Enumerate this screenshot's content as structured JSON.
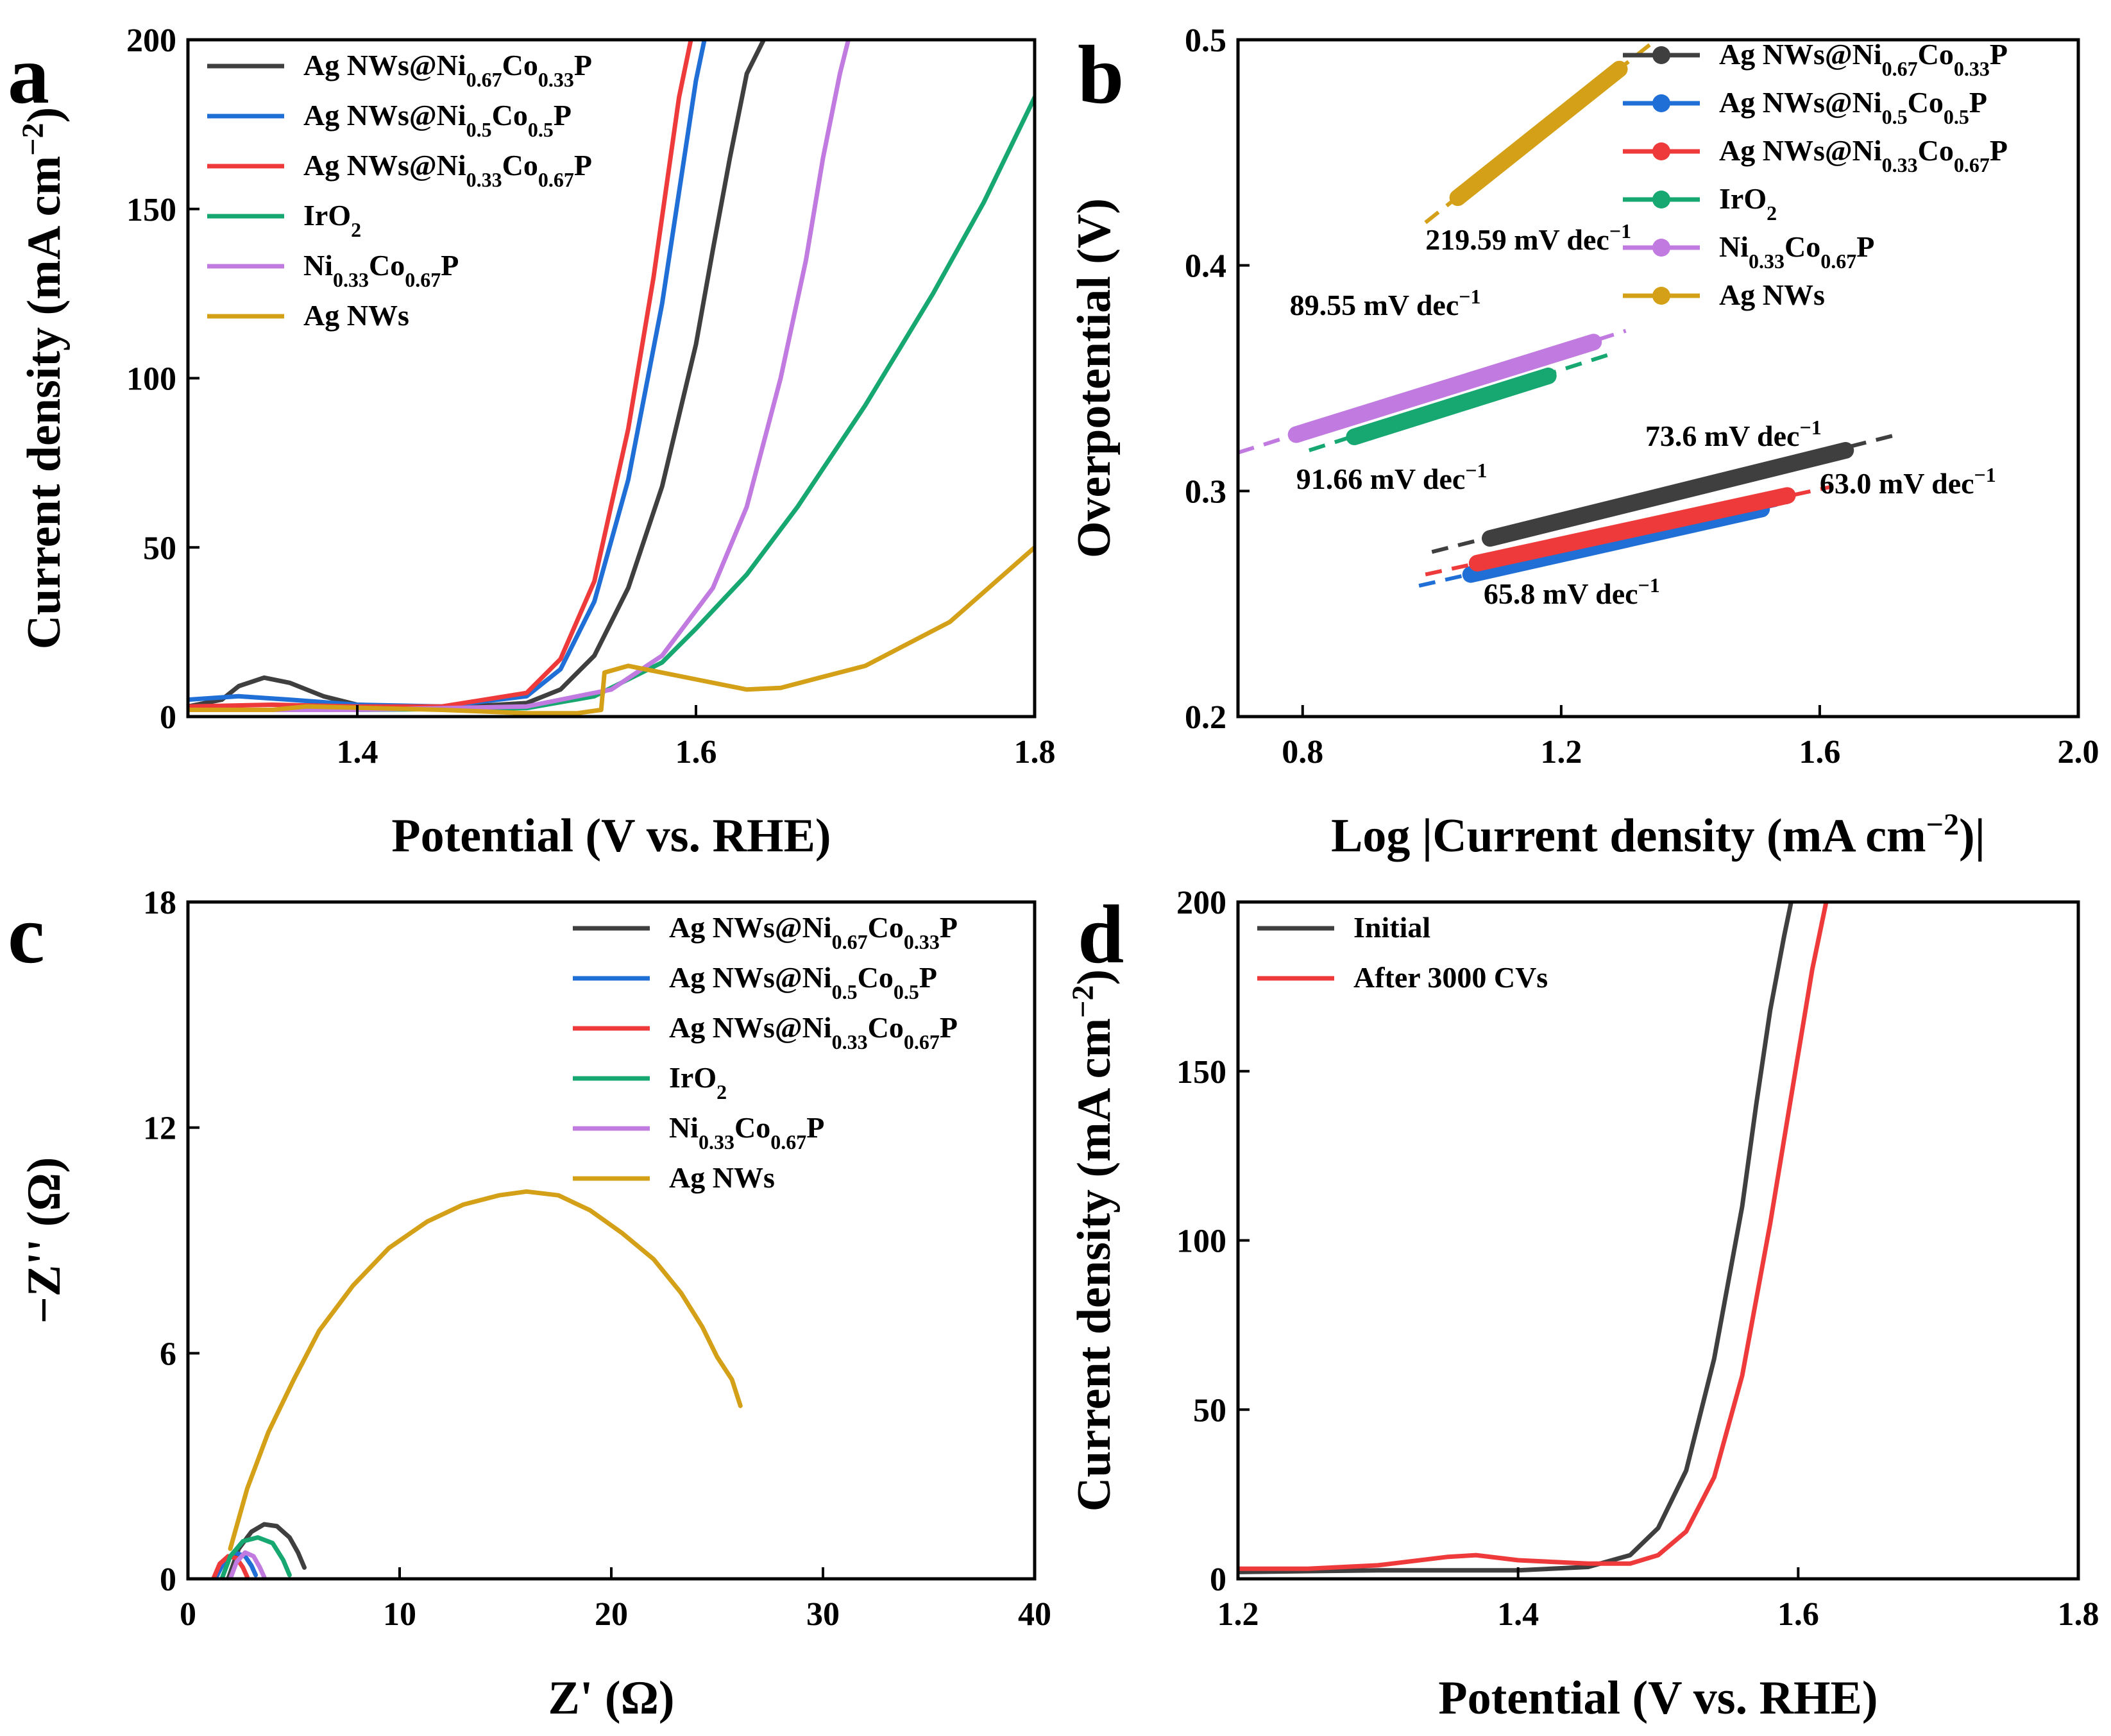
{
  "colors": {
    "black": "#3f3f3f",
    "blue": "#1f6fd6",
    "red": "#ee3a3a",
    "green": "#16a870",
    "purple": "#c07ae0",
    "gold": "#d4a017",
    "initial": "#3f3f3f",
    "after": "#ee3a3a"
  },
  "chart_data": [
    {
      "panel": "a",
      "type": "line",
      "xlabel": "Potential (V vs. RHE)",
      "ylabel": "Current density (mA cm",
      "ylabel_sup": "−2",
      "ylabel_tail": ")",
      "xlim": [
        1.3,
        1.8
      ],
      "ylim": [
        0,
        200
      ],
      "xticks": [
        1.4,
        1.6,
        1.8
      ],
      "xtick_labels": [
        "1.4",
        "1.6",
        "1.8"
      ],
      "yticks": [
        0,
        50,
        100,
        150,
        200
      ],
      "ytick_labels": [
        "0",
        "50",
        "100",
        "150",
        "200"
      ],
      "legend_position": "top-left",
      "series": [
        {
          "name": "Ag NWs@Ni0.67Co0.33P",
          "label_parts": [
            "Ag NWs@Ni",
            "0.67",
            "Co",
            "0.33",
            "P"
          ],
          "color_key": "black",
          "x": [
            1.3,
            1.32,
            1.33,
            1.345,
            1.36,
            1.38,
            1.4,
            1.45,
            1.5,
            1.52,
            1.54,
            1.56,
            1.58,
            1.6,
            1.61,
            1.62,
            1.63,
            1.64
          ],
          "y": [
            3,
            5,
            9,
            11.5,
            10,
            6,
            3.5,
            2.5,
            4,
            8,
            18,
            38,
            68,
            110,
            138,
            165,
            190,
            200
          ]
        },
        {
          "name": "Ag NWs@Ni0.5Co0.5P",
          "label_parts": [
            "Ag NWs@Ni",
            "0.5",
            "Co",
            "0.5",
            "P"
          ],
          "color_key": "blue",
          "x": [
            1.3,
            1.33,
            1.36,
            1.4,
            1.45,
            1.5,
            1.52,
            1.54,
            1.56,
            1.58,
            1.59,
            1.6,
            1.605
          ],
          "y": [
            5,
            6,
            5,
            3.5,
            3,
            6,
            14,
            34,
            70,
            122,
            155,
            188,
            200
          ]
        },
        {
          "name": "Ag NWs@Ni0.33Co0.67P",
          "label_parts": [
            "Ag NWs@Ni",
            "0.33",
            "Co",
            "0.67",
            "P"
          ],
          "color_key": "red",
          "x": [
            1.3,
            1.35,
            1.4,
            1.45,
            1.5,
            1.52,
            1.54,
            1.56,
            1.575,
            1.59,
            1.597
          ],
          "y": [
            3,
            3.5,
            3,
            3,
            7,
            17,
            40,
            85,
            130,
            183,
            200
          ]
        },
        {
          "name": "IrO2",
          "label_parts": [
            "IrO",
            "2",
            "",
            "",
            ""
          ],
          "color_key": "green",
          "x": [
            1.3,
            1.4,
            1.5,
            1.54,
            1.58,
            1.6,
            1.63,
            1.66,
            1.7,
            1.74,
            1.77,
            1.8
          ],
          "y": [
            2,
            2,
            2.5,
            6,
            16,
            26,
            42,
            62,
            92,
            125,
            152,
            183
          ]
        },
        {
          "name": "Ni0.33Co0.67P",
          "label_parts": [
            "Ni",
            "0.33",
            "Co",
            "0.67",
            "P"
          ],
          "color_key": "purple",
          "x": [
            1.3,
            1.4,
            1.5,
            1.55,
            1.58,
            1.61,
            1.63,
            1.65,
            1.665,
            1.675,
            1.685,
            1.69
          ],
          "y": [
            2,
            2,
            3,
            8,
            18,
            38,
            62,
            100,
            135,
            165,
            190,
            200
          ]
        },
        {
          "name": "Ag NWs",
          "label_parts": [
            "Ag NWs",
            "",
            "",
            "",
            ""
          ],
          "color_key": "gold",
          "x": [
            1.3,
            1.35,
            1.37,
            1.45,
            1.5,
            1.53,
            1.544,
            1.546,
            1.56,
            1.6,
            1.63,
            1.65,
            1.7,
            1.75,
            1.8
          ],
          "y": [
            2,
            2,
            3,
            2,
            1,
            1,
            2,
            13,
            15,
            11,
            8,
            8.5,
            15,
            28,
            50
          ]
        }
      ]
    },
    {
      "panel": "b",
      "type": "scatter",
      "xlabel": "Log |Current density (mA cm",
      "xlabel_sup": "−2",
      "xlabel_tail": ")|",
      "ylabel": "Overpotential (V)",
      "xlim": [
        0.7,
        2.0
      ],
      "ylim": [
        0.2,
        0.5
      ],
      "xticks": [
        0.8,
        1.2,
        1.6,
        2.0
      ],
      "xtick_labels": [
        "0.8",
        "1.2",
        "1.6",
        "2.0"
      ],
      "yticks": [
        0.2,
        0.3,
        0.4,
        0.5
      ],
      "ytick_labels": [
        "0.2",
        "0.3",
        "0.4",
        "0.5"
      ],
      "legend_position": "top-right",
      "series": [
        {
          "name": "Ag NWs@Ni0.67Co0.33P",
          "label_parts": [
            "Ag NWs@Ni",
            "0.67",
            "Co",
            "0.33",
            "P"
          ],
          "color_key": "black",
          "data_x": [
            1.09,
            1.64
          ],
          "data_y": [
            0.279,
            0.318
          ],
          "fit_x": [
            1.0,
            1.72
          ],
          "fit_y": [
            0.273,
            0.325
          ]
        },
        {
          "name": "Ag NWs@Ni0.5Co0.5P",
          "label_parts": [
            "Ag NWs@Ni",
            "0.5",
            "Co",
            "0.5",
            "P"
          ],
          "color_key": "blue",
          "data_x": [
            1.06,
            1.51
          ],
          "data_y": [
            0.263,
            0.292
          ],
          "fit_x": [
            0.98,
            1.55
          ],
          "fit_y": [
            0.258,
            0.295
          ]
        },
        {
          "name": "Ag NWs@Ni0.33Co0.67P",
          "label_parts": [
            "Ag NWs@Ni",
            "0.33",
            "Co",
            "0.67",
            "P"
          ],
          "color_key": "red",
          "data_x": [
            1.07,
            1.55
          ],
          "data_y": [
            0.268,
            0.298
          ],
          "fit_x": [
            0.99,
            1.62
          ],
          "fit_y": [
            0.263,
            0.302
          ]
        },
        {
          "name": "IrO2",
          "label_parts": [
            "IrO",
            "2",
            "",
            "",
            ""
          ],
          "color_key": "green",
          "data_x": [
            0.88,
            1.18
          ],
          "data_y": [
            0.324,
            0.351
          ],
          "fit_x": [
            0.81,
            1.28
          ],
          "fit_y": [
            0.318,
            0.361
          ]
        },
        {
          "name": "Ni0.33Co0.67P",
          "label_parts": [
            "Ni",
            "0.33",
            "Co",
            "0.67",
            "P"
          ],
          "color_key": "purple",
          "data_x": [
            0.79,
            1.25
          ],
          "data_y": [
            0.325,
            0.366
          ],
          "fit_x": [
            0.7,
            1.3
          ],
          "fit_y": [
            0.317,
            0.371
          ]
        },
        {
          "name": "Ag NWs",
          "label_parts": [
            "Ag NWs",
            "",
            "",
            "",
            ""
          ],
          "color_key": "gold",
          "data_x": [
            1.04,
            1.29
          ],
          "data_y": [
            0.43,
            0.487
          ],
          "fit_x": [
            0.99,
            1.36
          ],
          "fit_y": [
            0.419,
            0.503
          ]
        }
      ],
      "annotations": [
        {
          "text": "219.59 mV dec",
          "sup": "−1",
          "x": 0.99,
          "y": 0.407
        },
        {
          "text": "89.55 mV dec",
          "sup": "−1",
          "x": 0.78,
          "y": 0.378
        },
        {
          "text": "91.66 mV dec",
          "sup": "−1",
          "x": 0.79,
          "y": 0.301
        },
        {
          "text": "73.6 mV dec",
          "sup": "−1",
          "x": 1.33,
          "y": 0.32
        },
        {
          "text": "63.0 mV dec",
          "sup": "−1",
          "x": 1.6,
          "y": 0.299
        },
        {
          "text": "65.8 mV dec",
          "sup": "−1",
          "x": 1.08,
          "y": 0.25
        }
      ]
    },
    {
      "panel": "c",
      "type": "line",
      "xlabel": "Z' (Ω)",
      "ylabel": "−Z'' (Ω)",
      "xlim": [
        0,
        40
      ],
      "ylim": [
        0,
        18
      ],
      "xticks": [
        0,
        10,
        20,
        30,
        40
      ],
      "xtick_labels": [
        "0",
        "10",
        "20",
        "30",
        "40"
      ],
      "yticks": [
        0,
        6,
        12,
        18
      ],
      "ytick_labels": [
        "0",
        "6",
        "12",
        "18"
      ],
      "legend_position": "top-right",
      "series": [
        {
          "name": "Ag NWs@Ni0.67Co0.33P",
          "label_parts": [
            "Ag NWs@Ni",
            "0.67",
            "Co",
            "0.33",
            "P"
          ],
          "color_key": "black",
          "x": [
            1.9,
            2.4,
            3.0,
            3.6,
            4.2,
            4.8,
            5.2,
            5.5
          ],
          "y": [
            0,
            0.8,
            1.25,
            1.45,
            1.4,
            1.1,
            0.7,
            0.3
          ]
        },
        {
          "name": "Ag NWs@Ni0.5Co0.5P",
          "label_parts": [
            "Ag NWs@Ni",
            "0.5",
            "Co",
            "0.5",
            "P"
          ],
          "color_key": "blue",
          "x": [
            1.3,
            1.7,
            2.2,
            2.7,
            3.0,
            3.2
          ],
          "y": [
            0,
            0.45,
            0.7,
            0.6,
            0.35,
            0.1
          ]
        },
        {
          "name": "Ag NWs@Ni0.33Co0.67P",
          "label_parts": [
            "Ag NWs@Ni",
            "0.33",
            "Co",
            "0.67",
            "P"
          ],
          "color_key": "red",
          "x": [
            1.2,
            1.5,
            1.9,
            2.3,
            2.6,
            2.8
          ],
          "y": [
            0,
            0.4,
            0.6,
            0.55,
            0.3,
            0.05
          ]
        },
        {
          "name": "IrO2",
          "label_parts": [
            "IrO",
            "2",
            "",
            "",
            ""
          ],
          "color_key": "green",
          "x": [
            1.6,
            2.0,
            2.6,
            3.3,
            4.0,
            4.5,
            4.8
          ],
          "y": [
            0,
            0.6,
            1.0,
            1.1,
            0.95,
            0.5,
            0.1
          ]
        },
        {
          "name": "Ni0.33Co0.67P",
          "label_parts": [
            "Ni",
            "0.33",
            "Co",
            "0.67",
            "P"
          ],
          "color_key": "purple",
          "x": [
            2.0,
            2.3,
            2.7,
            3.1,
            3.4,
            3.6
          ],
          "y": [
            0,
            0.45,
            0.7,
            0.6,
            0.3,
            0.05
          ]
        },
        {
          "name": "Ag NWs",
          "label_parts": [
            "Ag NWs",
            "",
            "",
            "",
            ""
          ],
          "color_key": "gold",
          "x": [
            2.0,
            2.8,
            3.8,
            5.0,
            6.2,
            7.8,
            9.5,
            11.3,
            13.0,
            14.7,
            16.0,
            17.5,
            19.0,
            20.5,
            22.0,
            23.3,
            24.3,
            25.0,
            25.7,
            26.1
          ],
          "y": [
            0.8,
            2.4,
            3.9,
            5.3,
            6.6,
            7.8,
            8.8,
            9.5,
            9.95,
            10.2,
            10.3,
            10.2,
            9.8,
            9.2,
            8.5,
            7.6,
            6.7,
            5.9,
            5.3,
            4.6
          ]
        }
      ]
    },
    {
      "panel": "d",
      "type": "line",
      "xlabel": "Potential (V vs. RHE)",
      "ylabel": "Current density (mA cm",
      "ylabel_sup": "−2",
      "ylabel_tail": ")",
      "xlim": [
        1.2,
        1.8
      ],
      "ylim": [
        0,
        200
      ],
      "xticks": [
        1.2,
        1.4,
        1.6,
        1.8
      ],
      "xtick_labels": [
        "1.2",
        "1.4",
        "1.6",
        "1.8"
      ],
      "yticks": [
        0,
        50,
        100,
        150,
        200
      ],
      "ytick_labels": [
        "0",
        "50",
        "100",
        "150",
        "200"
      ],
      "legend_position": "top-left",
      "series": [
        {
          "name": "Initial",
          "label_parts": [
            "Initial",
            "",
            "",
            "",
            ""
          ],
          "color_key": "initial",
          "x": [
            1.2,
            1.3,
            1.4,
            1.45,
            1.48,
            1.5,
            1.52,
            1.54,
            1.56,
            1.57,
            1.58,
            1.59,
            1.595
          ],
          "y": [
            2,
            2.5,
            2.5,
            3.5,
            7,
            15,
            32,
            65,
            110,
            140,
            168,
            190,
            200
          ]
        },
        {
          "name": "After 3000 CVs",
          "label_parts": [
            "After 3000 CVs",
            "",
            "",
            "",
            ""
          ],
          "color_key": "after",
          "x": [
            1.2,
            1.25,
            1.3,
            1.35,
            1.37,
            1.4,
            1.45,
            1.48,
            1.5,
            1.52,
            1.54,
            1.56,
            1.58,
            1.6,
            1.61,
            1.62
          ],
          "y": [
            3,
            3,
            4,
            6.5,
            7,
            5.5,
            4.5,
            4.5,
            7,
            14,
            30,
            60,
            105,
            155,
            180,
            200
          ]
        }
      ]
    }
  ],
  "panel_letters": [
    "a",
    "b",
    "c",
    "d"
  ]
}
